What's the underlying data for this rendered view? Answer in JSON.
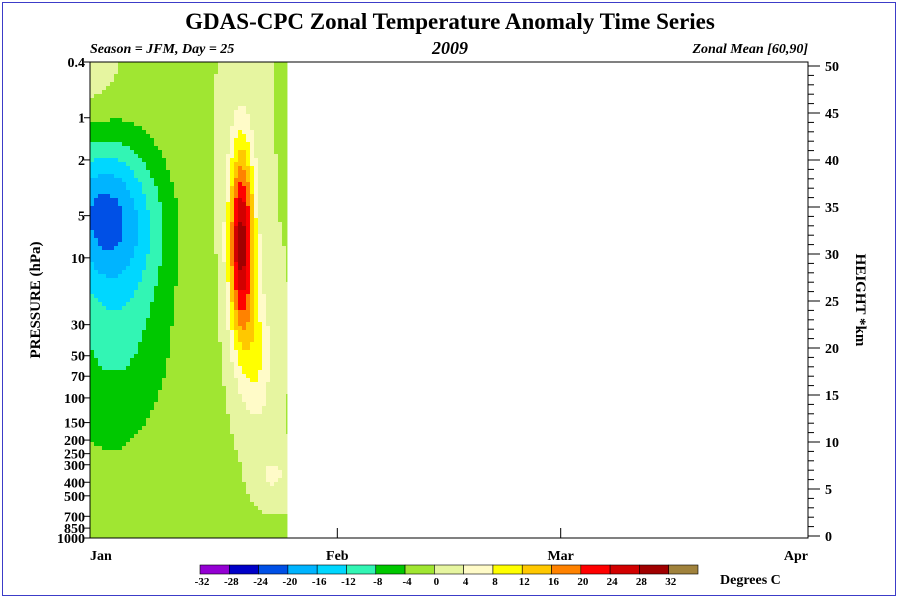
{
  "title": "GDAS-CPC Zonal Temperature Anomaly Time Series",
  "season_label": "Season = JFM, Day =  25",
  "year": "2009",
  "region_label": "Zonal Mean [60,90]",
  "chart_data": {
    "type": "heatmap",
    "xlabel": "",
    "ylabel": "PRESSURE (hPa)",
    "ylabel_right": "HEIGHT *km",
    "x_ticks": [
      "Jan",
      "Feb",
      "Mar",
      "Apr"
    ],
    "x_range_days": [
      1,
      91
    ],
    "data_through_day": 25,
    "y_ticks_pressure": [
      "0.4",
      "1",
      "2",
      "5",
      "10",
      "30",
      "50",
      "70",
      "100",
      "150",
      "200",
      "250",
      "300",
      "400",
      "500",
      "700",
      "850",
      "1000"
    ],
    "y_ticks_height": [
      "0",
      "5",
      "10",
      "15",
      "20",
      "25",
      "30",
      "35",
      "40",
      "45",
      "50"
    ],
    "pressure_range_hPa": [
      1000,
      0.4
    ],
    "y_scale": "log-pressure",
    "colorbar": {
      "levels": [
        "-32",
        "-28",
        "-24",
        "-20",
        "-16",
        "-12",
        "-8",
        "-4",
        "0",
        "4",
        "8",
        "12",
        "16",
        "20",
        "24",
        "28",
        "32"
      ],
      "colors": [
        "#9400d3",
        "#0000c8",
        "#0050e6",
        "#00b4ff",
        "#00d7ff",
        "#32f5b4",
        "#00c800",
        "#a0e632",
        "#e6f5a0",
        "#fffbc8",
        "#ffff00",
        "#ffc800",
        "#ff8200",
        "#ff0000",
        "#d20000",
        "#a00000",
        "#a0823c"
      ],
      "units": "Degrees C"
    },
    "anomaly_fields": [
      {
        "type": "cold",
        "day": 5,
        "log10p": 0.75,
        "amp": -14,
        "sx": 6,
        "sy": 0.6
      },
      {
        "type": "cold",
        "day": 1,
        "log10p": 0.65,
        "amp": -10,
        "sx": 5,
        "sy": 0.5
      },
      {
        "type": "cold",
        "day": 4,
        "log10p": 1.6,
        "amp": -6,
        "sx": 7,
        "sy": 0.6
      },
      {
        "type": "cold",
        "day": 3,
        "log10p": 2.7,
        "amp": -3,
        "sx": 12,
        "sy": 1.5
      },
      {
        "type": "warm",
        "day": 1,
        "log10p": -0.2,
        "amp": 2,
        "sx": 4,
        "sy": 0.25
      },
      {
        "type": "warm",
        "day": 20,
        "log10p": 0.9,
        "amp": 30,
        "sx": 1.6,
        "sy": 0.7
      },
      {
        "type": "warm",
        "day": 22,
        "log10p": 1.7,
        "amp": 8,
        "sx": 1.8,
        "sy": 0.5
      },
      {
        "type": "warm",
        "day": 24,
        "log10p": 2.55,
        "amp": 5,
        "sx": 2,
        "sy": 0.15
      }
    ]
  }
}
